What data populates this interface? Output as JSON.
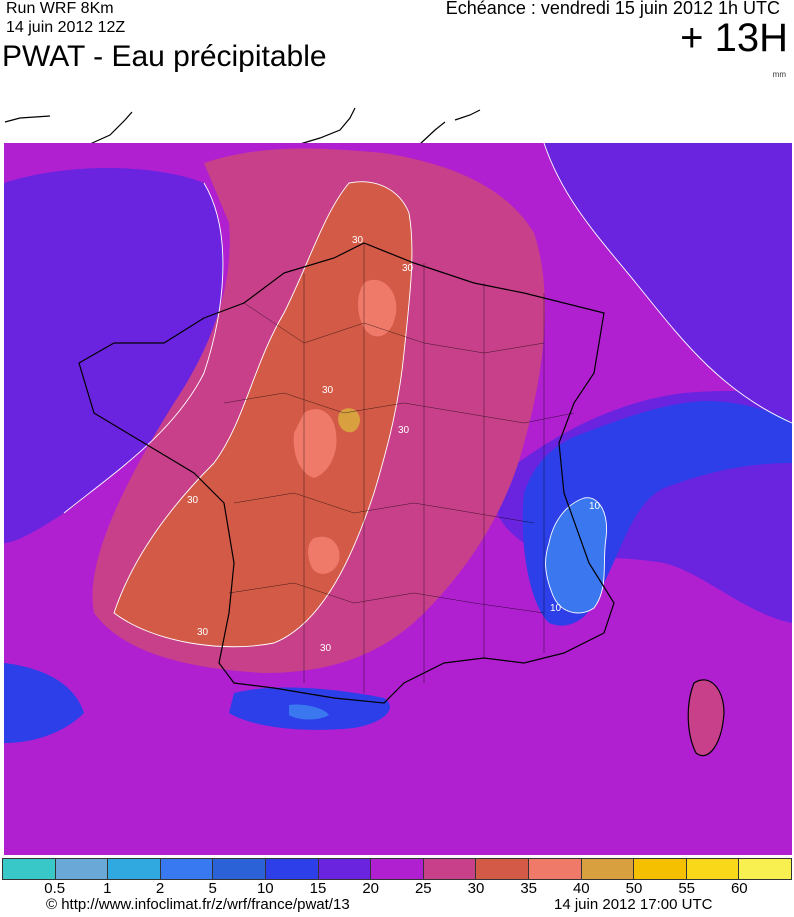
{
  "header": {
    "run_label": "Run WRF 8Km",
    "run_date": "14 juin 2012 12Z",
    "title": "PWAT - Eau précipitable",
    "echeance": "Echéance : vendredi 15 juin 2012 1h UTC",
    "lead_time": "+ 13H",
    "unit": "mm"
  },
  "map": {
    "region": "France",
    "contour_labels": [
      "30",
      "30",
      "30",
      "30",
      "30",
      "30",
      "30",
      "10",
      "10"
    ],
    "colors": {
      "c_5_10": "#3b78f0",
      "c_10_15": "#2c3fe8",
      "c_15_20": "#6a24e0",
      "c_20_25": "#b020d0",
      "c_25_30": "#c8408a",
      "c_30_35": "#d45a48",
      "c_35_40": "#f07a6a",
      "c_40_50": "#d9a040"
    }
  },
  "legend": {
    "colors": [
      "#38c8c8",
      "#6aa8d8",
      "#30a8e0",
      "#3878f0",
      "#2c62d8",
      "#2c3fe8",
      "#6a24e0",
      "#b020d0",
      "#c8408a",
      "#d45a48",
      "#f07a6a",
      "#d9a040",
      "#f5c000",
      "#f8d818",
      "#f8f050"
    ],
    "labels": [
      "0.5",
      "1",
      "2",
      "5",
      "10",
      "15",
      "20",
      "25",
      "30",
      "35",
      "40",
      "50",
      "55",
      "60"
    ]
  },
  "footer": {
    "url": "© http://www.infoclimat.fr/z/wrf/france/pwat/13",
    "timestamp": "14 juin 2012 17:00 UTC"
  }
}
